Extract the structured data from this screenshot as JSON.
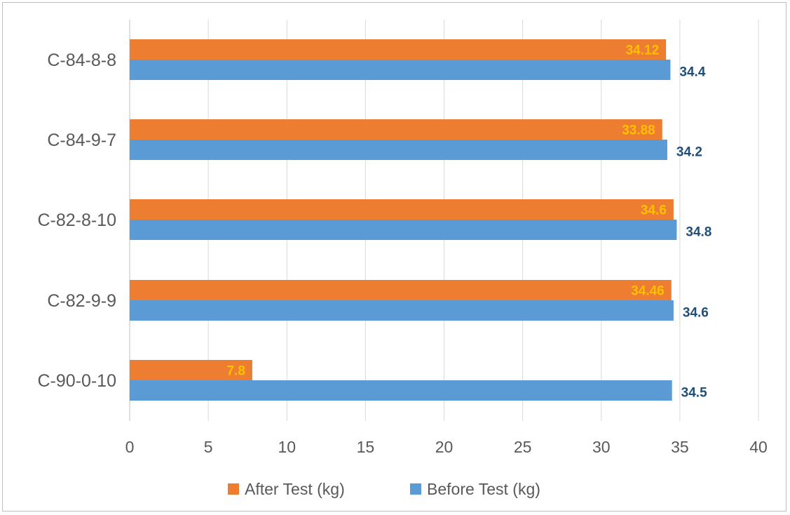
{
  "chart_data": {
    "type": "bar",
    "orientation": "horizontal",
    "categories": [
      "C-84-8-8",
      "C-84-9-7",
      "C-82-8-10",
      "C-82-9-9",
      "C-90-0-10"
    ],
    "series": [
      {
        "name": "After Test (kg)",
        "color": "#ed7d31",
        "label_color": "#ffc000",
        "values": [
          34.12,
          33.88,
          34.6,
          34.46,
          7.8
        ],
        "labels": [
          "34.12",
          "33.88",
          "34.6",
          "34.46",
          "7.8"
        ]
      },
      {
        "name": "Before Test (kg)",
        "color": "#5b9bd5",
        "label_color": "#1f4e79",
        "values": [
          34.4,
          34.2,
          34.8,
          34.6,
          34.5
        ],
        "labels": [
          "34.4",
          "34.2",
          "34.8",
          "34.6",
          "34.5"
        ]
      }
    ],
    "xlim": [
      0,
      40
    ],
    "xticks": [
      "0",
      "5",
      "10",
      "15",
      "20",
      "25",
      "30",
      "35",
      "40"
    ],
    "title": "",
    "xlabel": "",
    "ylabel": "",
    "grid": true,
    "legend_position": "bottom"
  }
}
